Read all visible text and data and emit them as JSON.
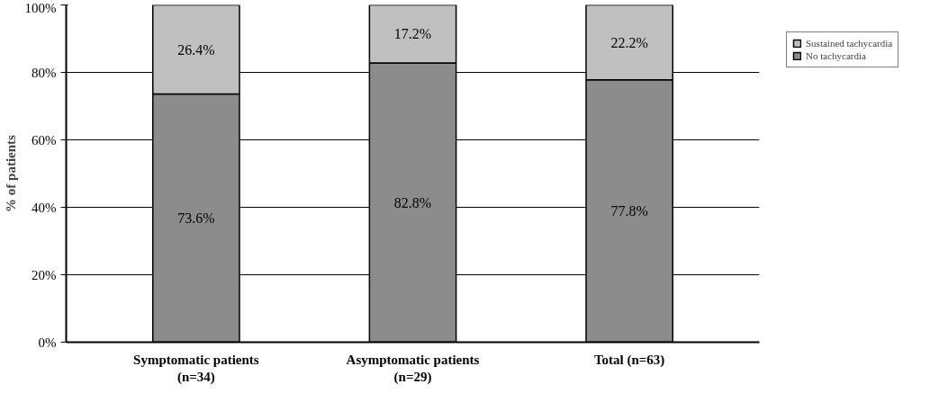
{
  "chart_data": {
    "type": "bar",
    "stacked": true,
    "ylabel": "% of patients",
    "categories": [
      "Symptomatic patients\n(n=34)",
      "Asymptomatic patients\n(n=29)",
      "Total (n=63)"
    ],
    "series": [
      {
        "name": "No tachycardia",
        "color": "#8c8c8c",
        "values": [
          73.6,
          82.8,
          77.8
        ],
        "value_labels": [
          "73.6%",
          "82.8%",
          "77.8%"
        ]
      },
      {
        "name": "Sustained tachycardia",
        "color": "#c0c0c0",
        "values": [
          26.4,
          17.2,
          22.2
        ],
        "value_labels": [
          "26.4%",
          "17.2%",
          "22.2%"
        ]
      }
    ],
    "ylim": [
      0,
      100
    ],
    "yticks": [
      {
        "value": 0,
        "label": "0%"
      },
      {
        "value": 20,
        "label": "20%"
      },
      {
        "value": 40,
        "label": "40%"
      },
      {
        "value": 60,
        "label": "60%"
      },
      {
        "value": 80,
        "label": "80%"
      },
      {
        "value": 100,
        "label": "100%"
      }
    ],
    "grid": "y",
    "legend": "right"
  }
}
